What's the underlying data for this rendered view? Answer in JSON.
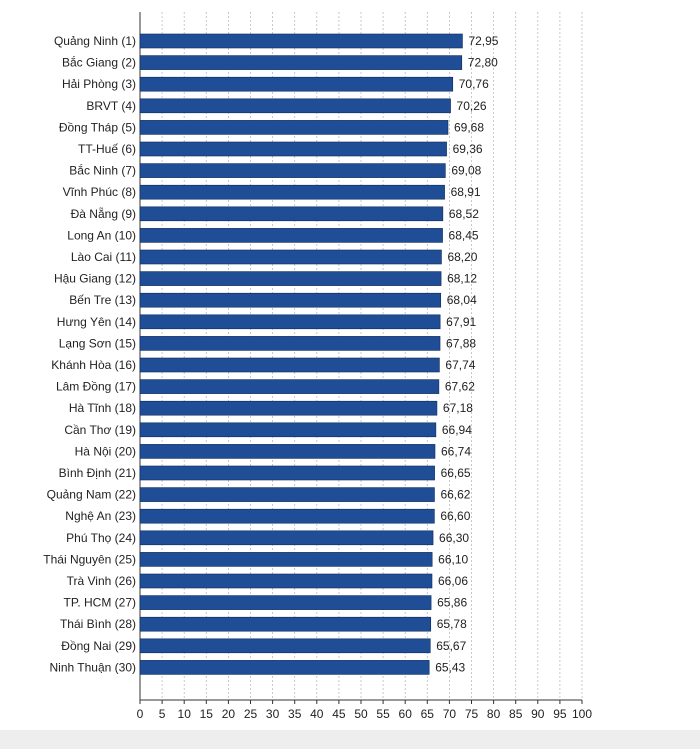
{
  "chart_data": {
    "type": "bar",
    "orientation": "horizontal",
    "categories": [
      "Quảng Ninh (1)",
      "Bắc Giang (2)",
      "Hải Phòng (3)",
      "BRVT (4)",
      "Đồng Tháp (5)",
      "TT-Huế (6)",
      "Bắc Ninh (7)",
      "Vĩnh Phúc (8)",
      "Đà Nẵng (9)",
      "Long An (10)",
      "Lào Cai (11)",
      "Hậu Giang (12)",
      "Bến Tre (13)",
      "Hưng Yên (14)",
      "Lạng Sơn (15)",
      "Khánh Hòa (16)",
      "Lâm Đồng (17)",
      "Hà Tĩnh (18)",
      "Cần Thơ (19)",
      "Hà Nội (20)",
      "Bình Định (21)",
      "Quảng Nam (22)",
      "Nghệ An (23)",
      "Phú Thọ (24)",
      "Thái Nguyên (25)",
      "Trà Vinh (26)",
      "TP. HCM (27)",
      "Thái Bình (28)",
      "Đồng Nai (29)",
      "Ninh Thuận (30)"
    ],
    "values": [
      72.95,
      72.8,
      70.76,
      70.26,
      69.68,
      69.36,
      69.08,
      68.91,
      68.52,
      68.45,
      68.2,
      68.12,
      68.04,
      67.91,
      67.88,
      67.74,
      67.62,
      67.18,
      66.94,
      66.74,
      66.65,
      66.62,
      66.6,
      66.3,
      66.1,
      66.06,
      65.86,
      65.78,
      65.67,
      65.43
    ],
    "value_labels": [
      "72,95",
      "72,80",
      "70,76",
      "70,26",
      "69,68",
      "69,36",
      "69,08",
      "68,91",
      "68,52",
      "68,45",
      "68,20",
      "68,12",
      "68,04",
      "67,91",
      "67,88",
      "67,74",
      "67,62",
      "67,18",
      "66,94",
      "66,74",
      "66,65",
      "66,62",
      "66,60",
      "66,30",
      "66,10",
      "66,06",
      "65,86",
      "65,78",
      "65,67",
      "65,43"
    ],
    "xlim": [
      0,
      100
    ],
    "xticks": [
      0,
      5,
      10,
      15,
      20,
      25,
      30,
      35,
      40,
      45,
      50,
      55,
      60,
      65,
      70,
      75,
      80,
      85,
      90,
      95,
      100
    ],
    "grid": "vertical dashed",
    "title": "",
    "xlabel": "",
    "ylabel": "",
    "colors": {
      "bar": "#1f4e96",
      "bar_edge": "#0d2a5c",
      "grid": "#bbbbbb",
      "axis": "#333333",
      "text": "#222222"
    }
  }
}
